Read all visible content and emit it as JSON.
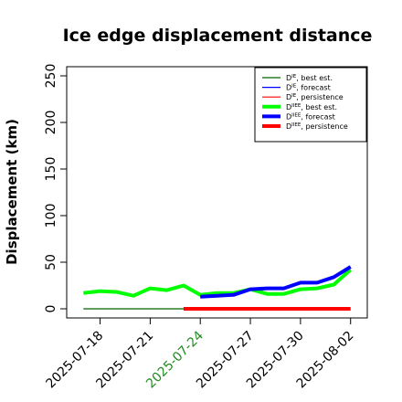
{
  "chart_data": {
    "type": "line",
    "title": "Ice edge displacement distance",
    "ylabel": "Displacement (km)",
    "xlabel": "",
    "xlim": [
      "2025-07-16",
      "2025-08-03"
    ],
    "ylim": [
      0,
      250
    ],
    "yticks": [
      0,
      50,
      100,
      150,
      200,
      250
    ],
    "xticks": [
      "2025-07-18",
      "2025-07-21",
      "2025-07-24",
      "2025-07-27",
      "2025-07-30",
      "2025-08-02"
    ],
    "highlighted_xtick": "2025-07-24",
    "highlight_color": "#228B22",
    "grid": false,
    "legend_position": "top-right",
    "legend": [
      {
        "key": "D_IE_best",
        "base": "D",
        "sup": "IE",
        "suffix": ", best est.",
        "color": "#006400",
        "width": 1.2
      },
      {
        "key": "D_IE_forecast",
        "base": "D",
        "sup": "IE",
        "suffix": ", forecast",
        "color": "#0000ff",
        "width": 1.2
      },
      {
        "key": "D_IE_persist",
        "base": "D",
        "sup": "IE",
        "suffix": ", persistence",
        "color": "#ff0000",
        "width": 1.2
      },
      {
        "key": "D_IIEE_best",
        "base": "D",
        "sup": "IIEE",
        "suffix": ", best est.",
        "color": "#00ff00",
        "width": 4
      },
      {
        "key": "D_IIEE_forecast",
        "base": "D",
        "sup": "IIEE",
        "suffix": ", forecast",
        "color": "#0000ff",
        "width": 4
      },
      {
        "key": "D_IIEE_persist",
        "base": "D",
        "sup": "IIEE",
        "suffix": ", persistence",
        "color": "#ff0000",
        "width": 4
      }
    ],
    "series": [
      {
        "key": "D_IE_best",
        "x": [
          "2025-07-17",
          "2025-07-18",
          "2025-07-19",
          "2025-07-20",
          "2025-07-21",
          "2025-07-22",
          "2025-07-23"
        ],
        "values": [
          0,
          0,
          0,
          0,
          0,
          0,
          0
        ]
      },
      {
        "key": "D_IIEE_best",
        "x": [
          "2025-07-17",
          "2025-07-18",
          "2025-07-19",
          "2025-07-20",
          "2025-07-21",
          "2025-07-22",
          "2025-07-23",
          "2025-07-24",
          "2025-07-25",
          "2025-07-26",
          "2025-07-27",
          "2025-07-28",
          "2025-07-29",
          "2025-07-30",
          "2025-07-31",
          "2025-08-01",
          "2025-08-02"
        ],
        "values": [
          17,
          19,
          18,
          14,
          22,
          20,
          25,
          15,
          17,
          17,
          21,
          16,
          16,
          21,
          22,
          26,
          42
        ]
      },
      {
        "key": "D_IE_persist",
        "x": [
          "2025-07-23",
          "2025-07-24",
          "2025-07-25",
          "2025-07-26",
          "2025-07-27",
          "2025-07-28",
          "2025-07-29",
          "2025-07-30",
          "2025-07-31",
          "2025-08-01",
          "2025-08-02"
        ],
        "values": [
          0,
          0,
          0,
          0,
          0,
          0,
          0,
          0,
          0,
          0,
          0
        ]
      },
      {
        "key": "D_IIEE_persist",
        "x": [
          "2025-07-23",
          "2025-07-24",
          "2025-07-25",
          "2025-07-26",
          "2025-07-27",
          "2025-07-28",
          "2025-07-29",
          "2025-07-30",
          "2025-07-31",
          "2025-08-01",
          "2025-08-02"
        ],
        "values": [
          0,
          0,
          0,
          0,
          0,
          0,
          0,
          0,
          0,
          0,
          0
        ]
      },
      {
        "key": "D_IIEE_forecast",
        "x": [
          "2025-07-24",
          "2025-07-25",
          "2025-07-26",
          "2025-07-27",
          "2025-07-28",
          "2025-07-29",
          "2025-07-30",
          "2025-07-31",
          "2025-08-01",
          "2025-08-02"
        ],
        "values": [
          13,
          14,
          15,
          21,
          22,
          22,
          28,
          28,
          34,
          45
        ]
      },
      {
        "key": "D_IE_forecast",
        "x": [
          "2025-07-24",
          "2025-07-25",
          "2025-07-26",
          "2025-07-27",
          "2025-07-28",
          "2025-07-29",
          "2025-07-30",
          "2025-07-31",
          "2025-08-01",
          "2025-08-02"
        ],
        "values": [
          13,
          14,
          15,
          21,
          22,
          22,
          28,
          28,
          34,
          45
        ]
      }
    ]
  }
}
